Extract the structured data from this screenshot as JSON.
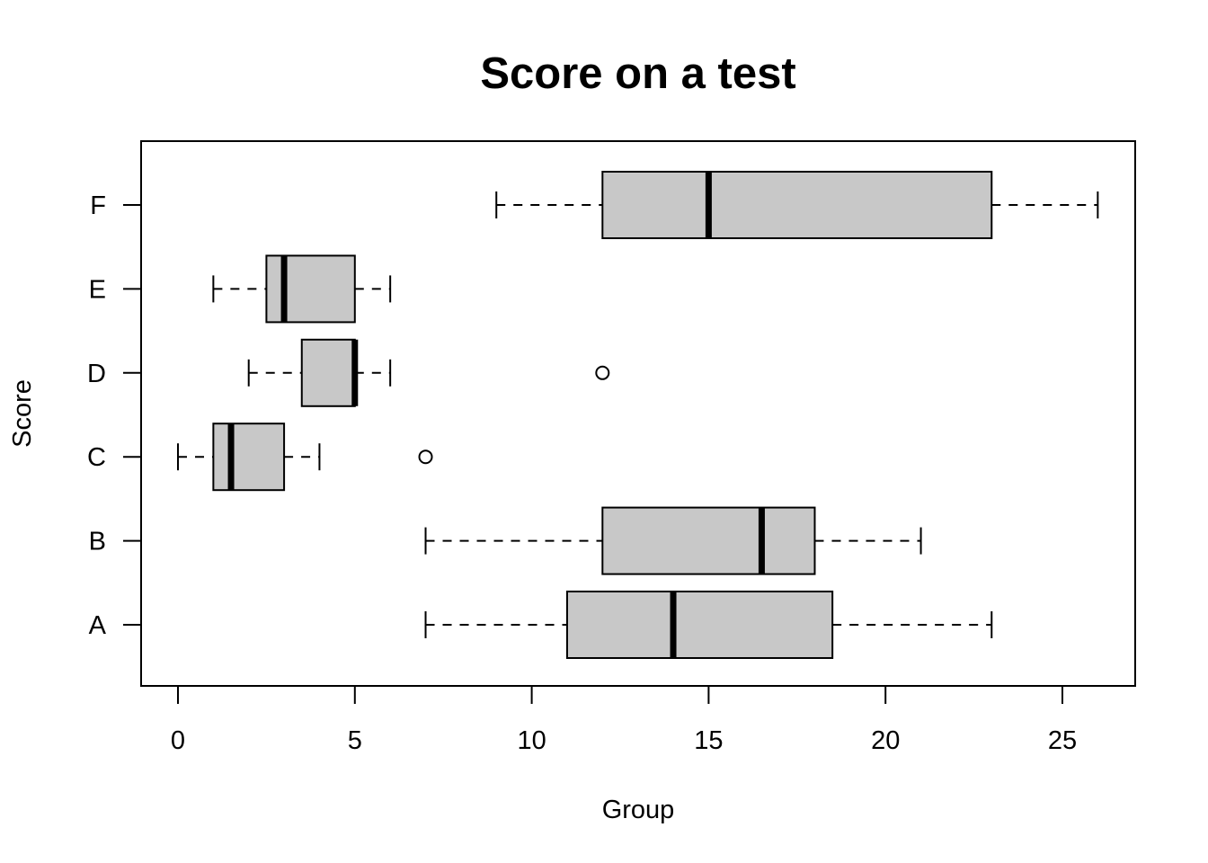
{
  "chart_data": {
    "type": "boxplot",
    "orientation": "horizontal",
    "title": "Score on a test",
    "xlabel": "Group",
    "ylabel": "Score",
    "xlim": [
      -1,
      27
    ],
    "xticks": [
      0,
      5,
      10,
      15,
      20,
      25
    ],
    "box_fill": "#c8c8c8",
    "groups": [
      {
        "label": "A",
        "min": 7,
        "q1": 11,
        "median": 14,
        "q3": 18.5,
        "max": 23,
        "outliers": []
      },
      {
        "label": "B",
        "min": 7,
        "q1": 12,
        "median": 16.5,
        "q3": 18,
        "max": 21,
        "outliers": []
      },
      {
        "label": "C",
        "min": 0,
        "q1": 1,
        "median": 1.5,
        "q3": 3,
        "max": 4,
        "outliers": [
          7
        ]
      },
      {
        "label": "D",
        "min": 2,
        "q1": 3.5,
        "median": 5,
        "q3": 5,
        "max": 6,
        "outliers": [
          12
        ]
      },
      {
        "label": "E",
        "min": 1,
        "q1": 2.5,
        "median": 3,
        "q3": 5,
        "max": 6,
        "outliers": []
      },
      {
        "label": "F",
        "min": 9,
        "q1": 12,
        "median": 15,
        "q3": 23,
        "max": 26,
        "outliers": []
      }
    ]
  }
}
